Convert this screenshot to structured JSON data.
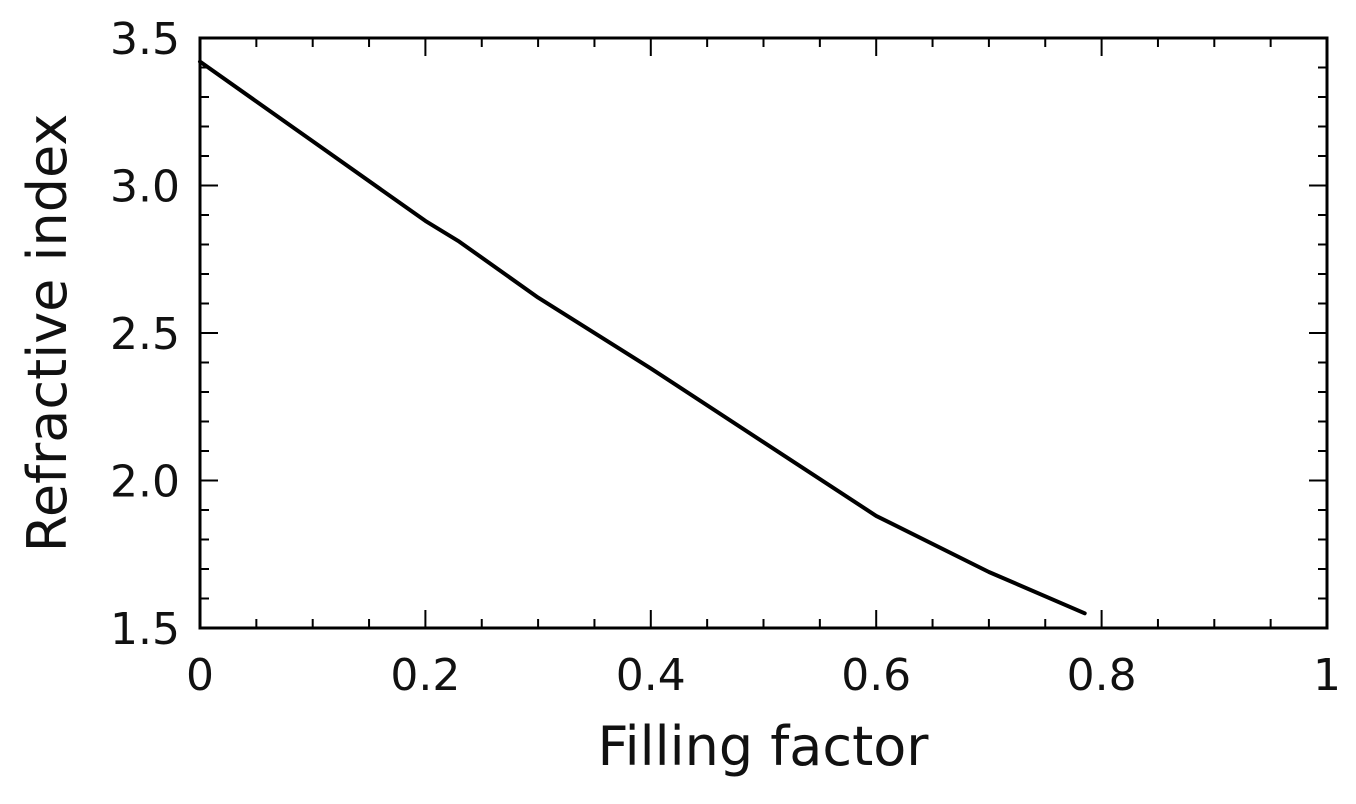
{
  "chart_data": {
    "type": "line",
    "xlabel": "Filling factor",
    "ylabel": "Refractive index",
    "xlim": [
      0,
      1
    ],
    "ylim": [
      1.5,
      3.5
    ],
    "x_ticks": [
      0,
      0.2,
      0.4,
      0.6,
      0.8,
      1
    ],
    "x_tick_labels": [
      "0",
      "0.2",
      "0.4",
      "0.6",
      "0.8",
      "1"
    ],
    "y_ticks": [
      1.5,
      2.0,
      2.5,
      3.0,
      3.5
    ],
    "y_tick_labels": [
      "1.5",
      "2.0",
      "2.5",
      "3.0",
      "3.5"
    ],
    "grid": false,
    "legend": "none",
    "series": [
      {
        "color": "#000000",
        "x": [
          0,
          0.1,
          0.2,
          0.23,
          0.3,
          0.4,
          0.5,
          0.6,
          0.7,
          0.785
        ],
        "y": [
          3.42,
          3.15,
          2.88,
          2.81,
          2.62,
          2.38,
          2.13,
          1.88,
          1.69,
          1.55
        ]
      }
    ]
  }
}
